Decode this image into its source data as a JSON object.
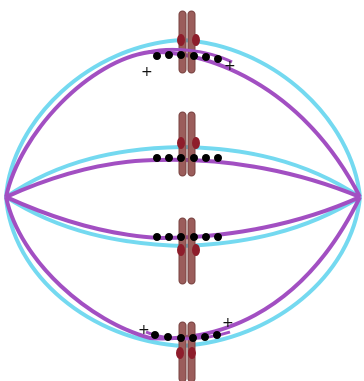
{
  "diagram": {
    "colors": {
      "background": "#ffffff",
      "spindle_outer": "#74d9f0",
      "spindle_inner": "#a24fc2",
      "chromatid": "#9b5d5b",
      "chromatid_outline": "#7a4442",
      "kinetochore": "#8e1d2b",
      "motor_dot": "#000000",
      "plus_sign": "#111111"
    },
    "chromosomes": [
      {
        "id": "top",
        "motor_count": 6,
        "has_plus_labels": true
      },
      {
        "id": "upper-middle",
        "motor_count": 6,
        "has_plus_labels": false
      },
      {
        "id": "lower-middle",
        "motor_count": 6,
        "has_plus_labels": false
      },
      {
        "id": "bottom",
        "motor_count": 6,
        "has_plus_labels": true
      }
    ],
    "plus_label": "+"
  }
}
